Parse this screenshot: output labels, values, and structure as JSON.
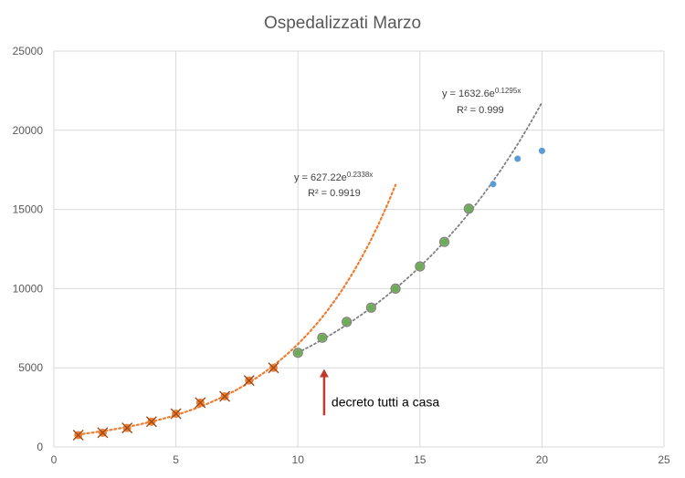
{
  "chart_data": {
    "type": "scatter",
    "title": "Ospedalizzati Marzo",
    "xlabel": "",
    "ylabel": "",
    "xlim": [
      0,
      25
    ],
    "ylim": [
      0,
      25000
    ],
    "xticks": [
      0,
      5,
      10,
      15,
      20,
      25
    ],
    "yticks": [
      0,
      5000,
      10000,
      15000,
      20000,
      25000
    ],
    "grid": true,
    "colors": {
      "blue": "#5b9bd5",
      "orange": "#ed7d31",
      "green": "#70ad47",
      "trend_gray": "#7f7f7f",
      "arrow": "#c0392b",
      "grid": "#d9d9d9"
    },
    "series": [
      {
        "marker": "circle",
        "color": "#5b9bd5",
        "x": [
          1,
          2,
          3,
          4,
          5,
          6,
          7,
          8,
          9,
          10,
          11,
          12,
          13,
          14,
          15,
          16,
          17,
          18,
          19,
          20
        ],
        "y": [
          750,
          900,
          1200,
          1600,
          2100,
          2800,
          3200,
          4200,
          5000,
          5950,
          6900,
          7900,
          8800,
          10000,
          11400,
          12950,
          15050,
          16600,
          18200,
          18700
        ]
      },
      {
        "marker": "star",
        "color": "#ed7d31",
        "x": [
          1,
          2,
          3,
          4,
          5,
          6,
          7,
          8,
          9
        ],
        "y": [
          750,
          900,
          1200,
          1600,
          2100,
          2800,
          3200,
          4200,
          5000
        ]
      },
      {
        "marker": "circle-large",
        "color": "#70ad47",
        "x": [
          10,
          11,
          12,
          13,
          14,
          15,
          16,
          17
        ],
        "y": [
          5950,
          6900,
          7900,
          8800,
          10000,
          11400,
          12950,
          15050
        ]
      }
    ],
    "trendlines": [
      {
        "kind": "exponential",
        "a": 627.22,
        "b": 0.2338,
        "x_range": [
          1,
          14
        ],
        "color": "#ed7d31",
        "equation_prefix": "y = 627.22e",
        "equation_exp": "0.2338x",
        "r2_label": "R² = 0.9919"
      },
      {
        "kind": "exponential",
        "a": 1632.6,
        "b": 0.1295,
        "x_range": [
          10,
          20
        ],
        "color": "#7f7f7f",
        "equation_prefix": "y = 1632.6e",
        "equation_exp": "0.1295x",
        "r2_label": "R² = 0.999"
      }
    ],
    "annotations": [
      {
        "text": "decreto tutti a casa",
        "arrow_at_x": 11,
        "arrow_tip_y": 5500,
        "arrow_tail_y": 2000
      }
    ]
  }
}
